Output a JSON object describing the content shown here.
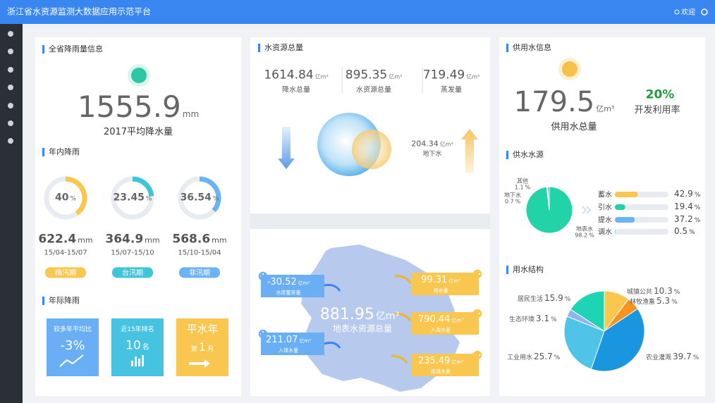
{
  "header": {
    "title": "浙江省水资源监测大数据应用示范平台",
    "user": "欢迎"
  },
  "rainfall": {
    "title": "全省降雨量信息",
    "average": {
      "value": 1555.9,
      "unit": "mm",
      "label": "2017平均降水量"
    },
    "within_year": {
      "title": "年内降雨",
      "percent_unit": "%",
      "amount_unit": "mm",
      "periods": [
        {
          "percent": 40,
          "amount": 622.4,
          "dates": "15/04-15/07",
          "tag": "梅汛期",
          "color": "#f9c74f"
        },
        {
          "percent": 23.45,
          "amount": 364.9,
          "dates": "15/07-15/10",
          "tag": "台汛期",
          "color": "#3ec6d8"
        },
        {
          "percent": 36.54,
          "amount": 568.6,
          "dates": "15/10-15/04",
          "tag": "非汛期",
          "color": "#6bb3f5"
        }
      ]
    },
    "inter_year": {
      "title": "年际降雨",
      "vs_average": {
        "label": "较多年平均比",
        "value": "-3%"
      },
      "rank": {
        "label": "近15年排名",
        "value": 10,
        "unit": "名"
      },
      "year_type": {
        "label": "平水年",
        "prefix": "第",
        "value": 1,
        "unit": "月"
      }
    }
  },
  "water_total": {
    "title": "水资源总量",
    "stats": [
      {
        "value": 1614.84,
        "unit": "亿m³",
        "label": "降水总量"
      },
      {
        "value": 895.35,
        "unit": "亿m³",
        "label": "水资源总量"
      },
      {
        "value": 719.49,
        "unit": "亿m³",
        "label": "蒸发量"
      }
    ],
    "groundwater": {
      "value": 204.34,
      "unit": "亿m³",
      "label": "地下水"
    }
  },
  "surface_water": {
    "total": {
      "value": 881.95,
      "unit": "亿m³",
      "label": "地表水资源总量"
    },
    "inflows": [
      {
        "value": -30.52,
        "unit": "亿m³",
        "label": "水库蓄变量"
      },
      {
        "value": 211.07,
        "unit": "亿m³",
        "label": "入境水量"
      }
    ],
    "outflows": [
      {
        "value": 99.31,
        "unit": "亿m³",
        "label": "用水量"
      },
      {
        "value": 790.44,
        "unit": "亿m³",
        "label": "入海水量"
      },
      {
        "value": 235.49,
        "unit": "亿m³",
        "label": "出境水量"
      }
    ]
  },
  "supply": {
    "title": "供用水信息",
    "total": {
      "value": 179.5,
      "unit": "亿m³",
      "label": "供用水总量"
    },
    "utilization": {
      "value": "20%",
      "label": "开发利用率"
    }
  },
  "supply_source": {
    "title": "供水水源",
    "type": "pie",
    "unit": "%",
    "slices": [
      {
        "name": "地表水",
        "value": 98.2,
        "color": "#22d3a8"
      },
      {
        "name": "地下水",
        "value": 0.7,
        "color": "#f6c14b"
      },
      {
        "name": "其他",
        "value": 1.1,
        "color": "#2f8fe0"
      }
    ],
    "bars": {
      "unit": "%",
      "items": [
        {
          "name": "蓄水",
          "value": 42.9,
          "color": "#f9c74f"
        },
        {
          "name": "引水",
          "value": 19.4,
          "color": "#22d3a8"
        },
        {
          "name": "提水",
          "value": 37.2,
          "color": "#6bb3f5"
        },
        {
          "name": "调水",
          "value": 0.5,
          "color": "#3a86f0"
        }
      ]
    }
  },
  "water_use": {
    "title": "用水结构",
    "type": "pie",
    "unit": "%",
    "slices": [
      {
        "name": "城镇公共",
        "value": 10.3,
        "color": "#f9c74f"
      },
      {
        "name": "林牧渔畜",
        "value": 5.3,
        "color": "#f7941d"
      },
      {
        "name": "农业灌溉",
        "value": 39.7,
        "color": "#1a96e0"
      },
      {
        "name": "工业用水",
        "value": 25.7,
        "color": "#4fc3e8"
      },
      {
        "name": "生态环境",
        "value": 3.1,
        "color": "#8fb5f0"
      },
      {
        "name": "居民生活",
        "value": 15.9,
        "color": "#1ed4b4"
      }
    ]
  }
}
